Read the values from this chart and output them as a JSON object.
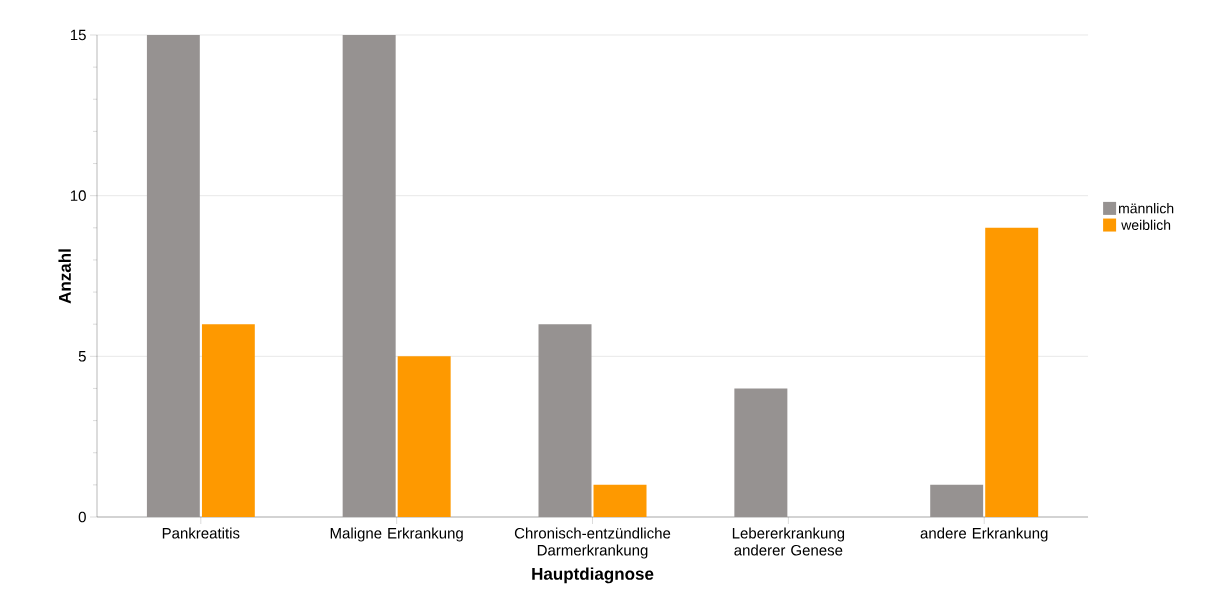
{
  "chart_data": {
    "type": "bar",
    "xlabel": "Hauptdiagnose",
    "ylabel": "Anzahl",
    "categories": [
      "Pankreatitis",
      "Maligne Erkrankung",
      "Chronisch-entzündliche Darmerkrankung",
      "Lebererkrankung anderer Genese",
      "andere Erkrankung"
    ],
    "series": [
      {
        "name": "männlich",
        "color": "#969291",
        "values": [
          15,
          15,
          6,
          4,
          1
        ]
      },
      {
        "name": "weiblich",
        "color": "#fe9900",
        "values": [
          6,
          5,
          1,
          0,
          9
        ]
      }
    ],
    "ylim": [
      0,
      15
    ],
    "yticks": [
      0,
      5,
      10,
      15
    ],
    "grid": "y",
    "legend": "right"
  }
}
